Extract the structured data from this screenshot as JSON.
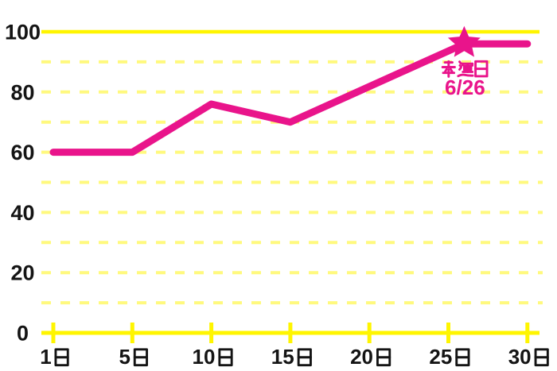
{
  "chart_data": {
    "type": "line",
    "title": "",
    "xlabel": "",
    "ylabel": "",
    "x_tick_labels": [
      "1日",
      "5日",
      "10日",
      "15日",
      "20日",
      "25日",
      "30日"
    ],
    "x_tick_days": [
      1,
      5,
      10,
      15,
      20,
      25,
      30
    ],
    "y_tick_labels": [
      "0",
      "20",
      "40",
      "60",
      "80",
      "100"
    ],
    "y_ticks": [
      0,
      20,
      40,
      60,
      80,
      100
    ],
    "y_gridline_step": 10,
    "ylim": [
      0,
      100
    ],
    "grid": {
      "solid_at": [
        0,
        100
      ],
      "dashed_step": 10,
      "orientation": "horizontal"
    },
    "legend": null,
    "series": [
      {
        "name": "",
        "color": "#E9148B",
        "points": [
          {
            "day": 1,
            "value": 60
          },
          {
            "day": 5,
            "value": 60
          },
          {
            "day": 10,
            "value": 76
          },
          {
            "day": 15,
            "value": 70
          },
          {
            "day": 26,
            "value": 96
          },
          {
            "day": 30,
            "value": 96
          }
        ]
      }
    ],
    "annotations": [
      {
        "marker": "star",
        "day": 26,
        "value": 96,
        "label_line1": "幸運日",
        "label_line2": "6/26",
        "color": "#E9148B"
      }
    ],
    "colors": {
      "line": "#E9148B",
      "star": "#E9148B",
      "annotation_text": "#E9148B",
      "axis_solid_yellow": "#FFF500",
      "grid_dashed_yellow": "#FFF97E",
      "tick_label_text": "#141414",
      "background": "#FFFFFF"
    }
  }
}
